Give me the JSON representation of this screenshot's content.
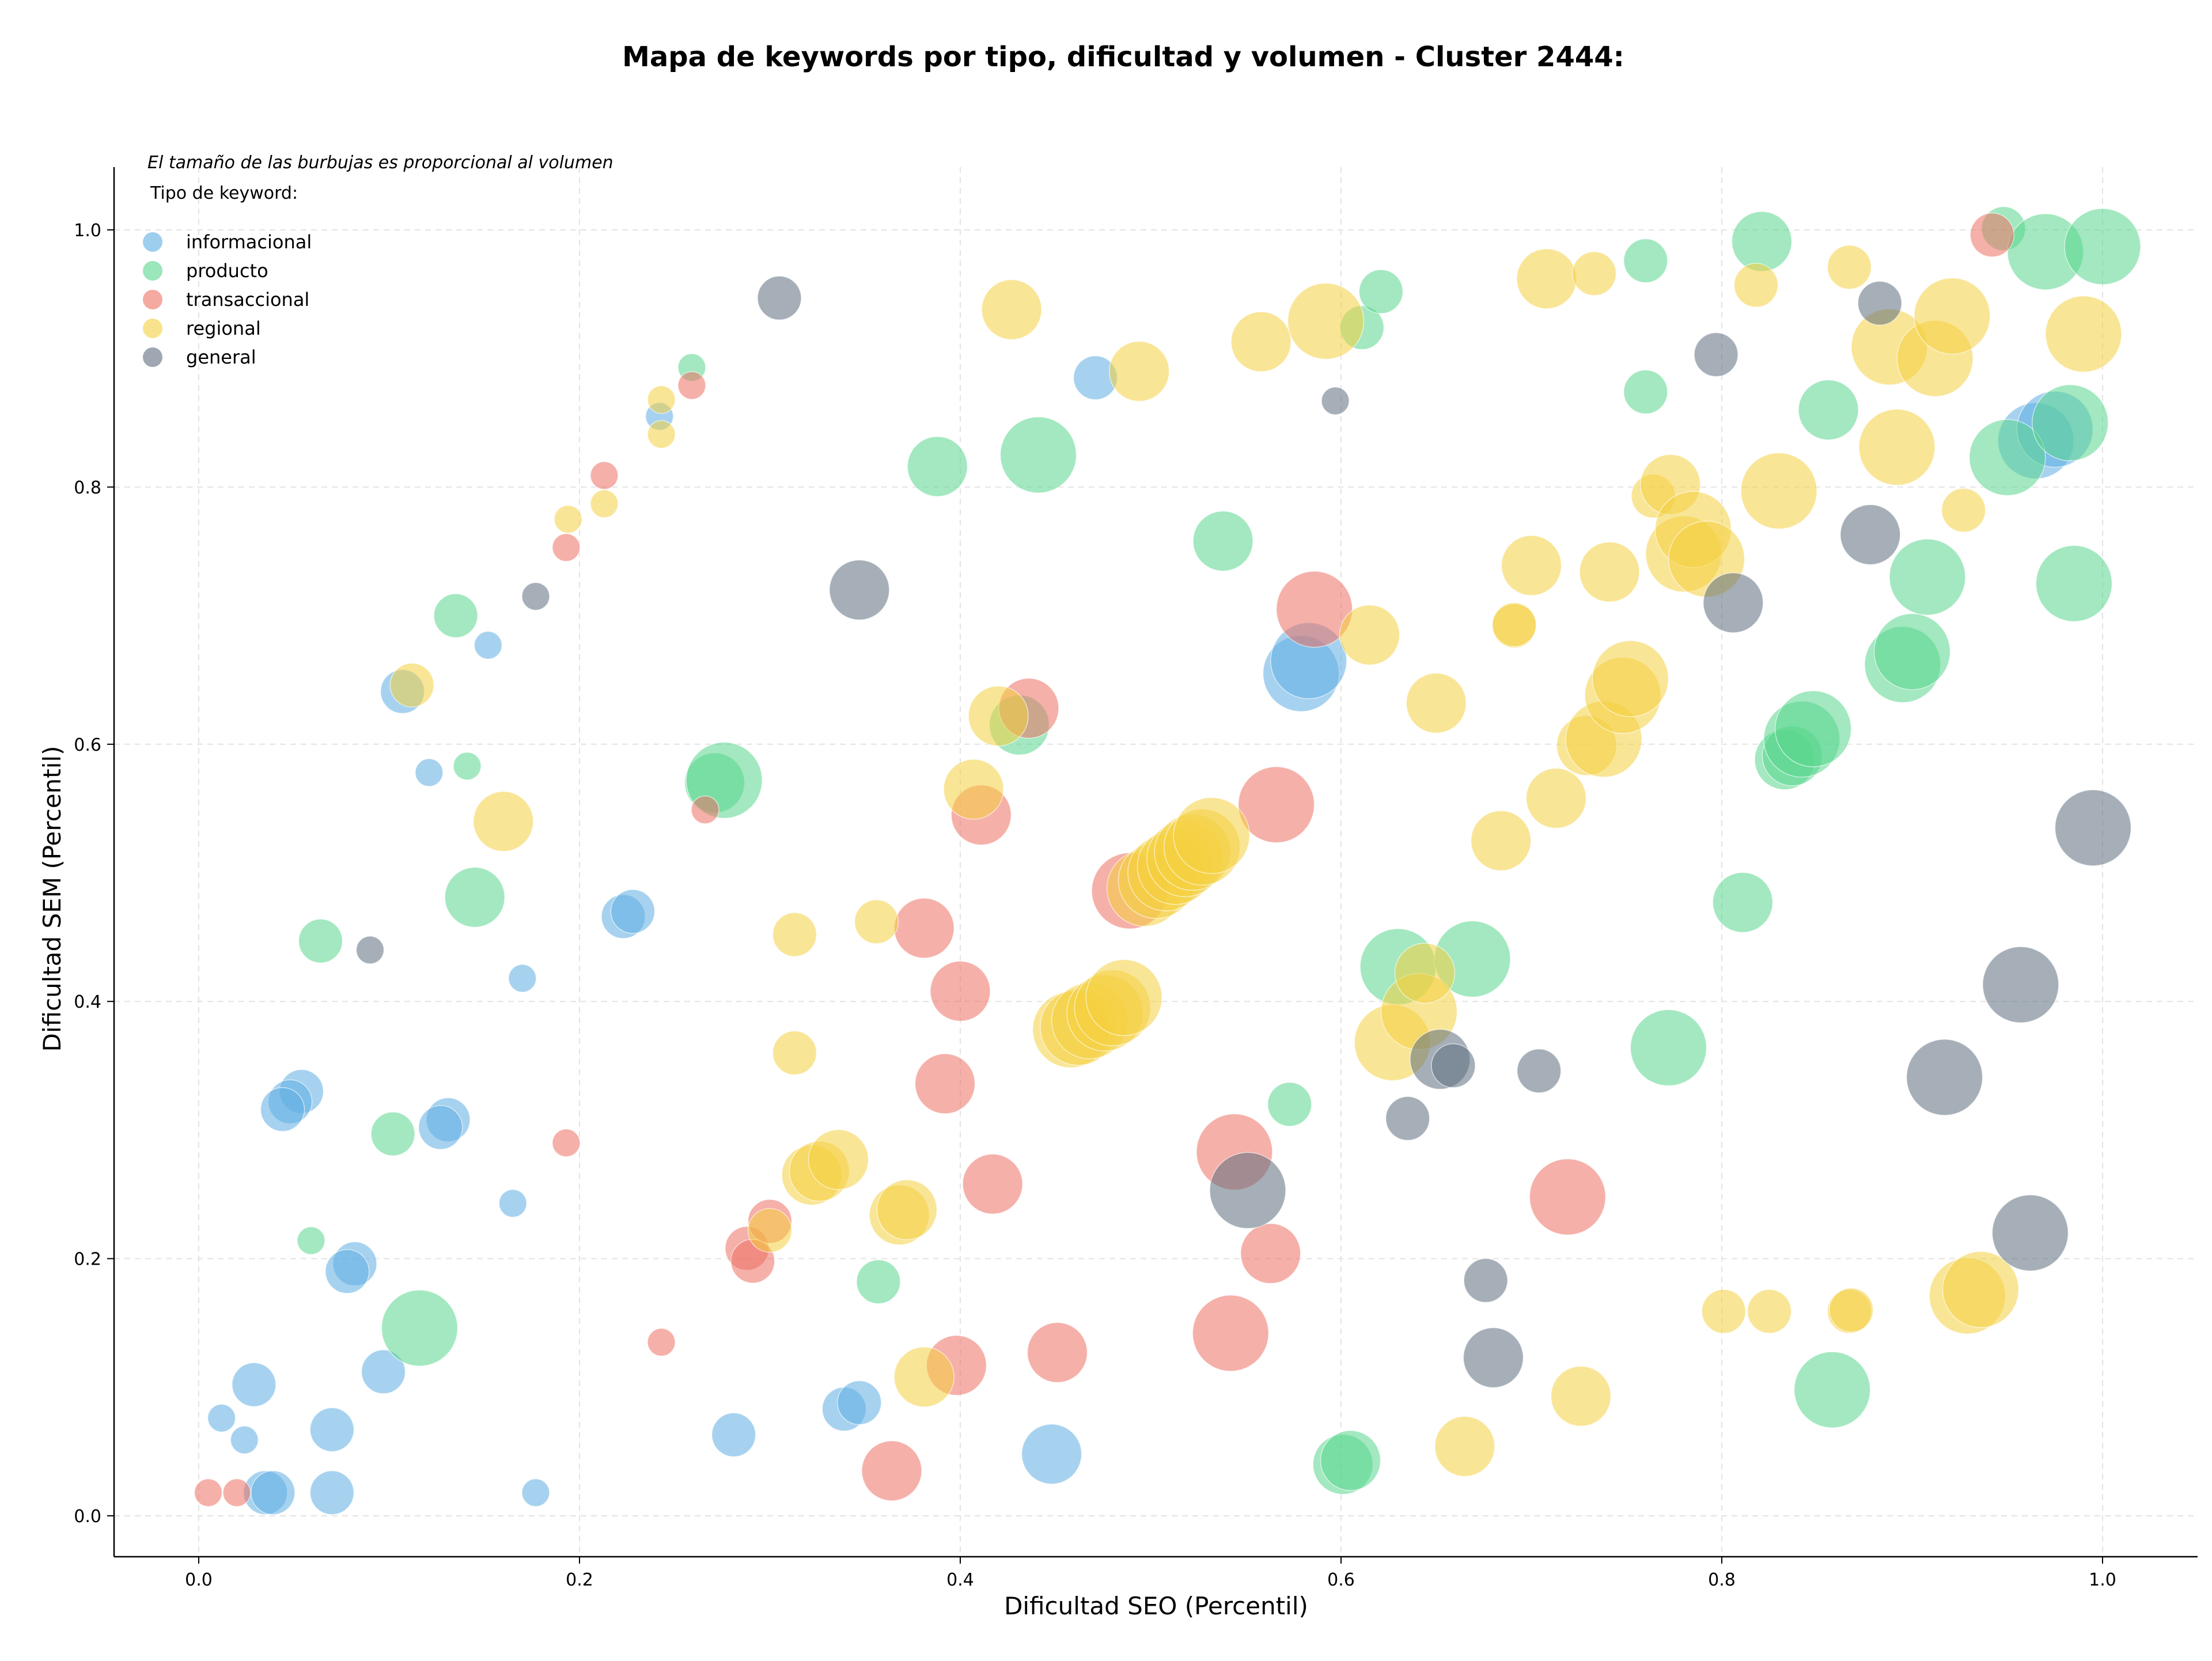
{
  "chart_data": {
    "type": "scatter",
    "title": "Mapa de keywords por tipo, dificultad y volumen - Cluster 2444:",
    "xlabel": "Dificultad SEO (Percentil)",
    "ylabel": "Dificultad SEM (Percentil)",
    "xlim": [
      -0.045,
      1.048
    ],
    "ylim": [
      -0.03,
      1.05
    ],
    "x_ticks": [
      0.0,
      0.2,
      0.4,
      0.6,
      0.8,
      1.0
    ],
    "y_ticks": [
      0.0,
      0.2,
      0.4,
      0.6,
      0.8,
      1.0
    ],
    "x_tick_labels": [
      "0.0",
      "0.2",
      "0.4",
      "0.6",
      "0.8",
      "1.0"
    ],
    "y_tick_labels": [
      "0.0",
      "0.2",
      "0.4",
      "0.6",
      "0.8",
      "1.0"
    ],
    "grid": true,
    "note": "El tamaño de las burbujas es proporcional al volumen",
    "legend_title": "Tipo de keyword:",
    "legend_position": "top-left",
    "series": [
      {
        "name": "informacional",
        "color": "#5dade2",
        "points": [
          [
            0.107,
            0.641,
            2
          ],
          [
            0.121,
            0.578,
            1
          ],
          [
            0.152,
            0.677,
            1
          ],
          [
            0.17,
            0.418,
            1
          ],
          [
            0.165,
            0.243,
            1
          ],
          [
            0.177,
            0.018,
            1
          ],
          [
            0.242,
            0.855,
            1
          ],
          [
            0.223,
            0.466,
            2
          ],
          [
            0.228,
            0.47,
            2
          ],
          [
            0.054,
            0.33,
            2
          ],
          [
            0.048,
            0.322,
            2
          ],
          [
            0.044,
            0.316,
            2
          ],
          [
            0.131,
            0.308,
            2
          ],
          [
            0.127,
            0.302,
            2
          ],
          [
            0.082,
            0.196,
            2
          ],
          [
            0.078,
            0.19,
            2
          ],
          [
            0.097,
            0.112,
            2
          ],
          [
            0.029,
            0.102,
            2
          ],
          [
            0.012,
            0.076,
            1
          ],
          [
            0.024,
            0.059,
            1
          ],
          [
            0.035,
            0.018,
            2
          ],
          [
            0.039,
            0.018,
            2
          ],
          [
            0.07,
            0.067,
            2
          ],
          [
            0.07,
            0.018,
            2
          ],
          [
            0.281,
            0.063,
            2
          ],
          [
            0.339,
            0.083,
            2
          ],
          [
            0.347,
            0.088,
            2
          ],
          [
            0.448,
            0.048,
            3
          ],
          [
            0.471,
            0.885,
            2
          ],
          [
            0.579,
            0.655,
            4
          ],
          [
            0.583,
            0.665,
            4
          ],
          [
            0.965,
            0.836,
            4
          ],
          [
            0.975,
            0.845,
            4
          ]
        ]
      },
      {
        "name": "producto",
        "color": "#58d68d",
        "points": [
          [
            0.135,
            0.7,
            2
          ],
          [
            0.141,
            0.583,
            1
          ],
          [
            0.145,
            0.481,
            3
          ],
          [
            0.064,
            0.447,
            2
          ],
          [
            0.102,
            0.297,
            2
          ],
          [
            0.059,
            0.214,
            1
          ],
          [
            0.116,
            0.146,
            4
          ],
          [
            0.259,
            0.893,
            1
          ],
          [
            0.271,
            0.57,
            3
          ],
          [
            0.276,
            0.572,
            4
          ],
          [
            0.388,
            0.816,
            3
          ],
          [
            0.441,
            0.825,
            4
          ],
          [
            0.431,
            0.615,
            3
          ],
          [
            0.357,
            0.182,
            2
          ],
          [
            0.538,
            0.758,
            3
          ],
          [
            0.573,
            0.32,
            2
          ],
          [
            0.601,
            0.04,
            3
          ],
          [
            0.605,
            0.043,
            3
          ],
          [
            0.611,
            0.924,
            2
          ],
          [
            0.621,
            0.952,
            2
          ],
          [
            0.63,
            0.427,
            4
          ],
          [
            0.669,
            0.433,
            4
          ],
          [
            0.76,
            0.976,
            2
          ],
          [
            0.76,
            0.874,
            2
          ],
          [
            0.772,
            0.364,
            4
          ],
          [
            0.811,
            0.477,
            3
          ],
          [
            0.821,
            0.991,
            3
          ],
          [
            0.833,
            0.588,
            3
          ],
          [
            0.837,
            0.591,
            3
          ],
          [
            0.842,
            0.604,
            4
          ],
          [
            0.848,
            0.612,
            4
          ],
          [
            0.856,
            0.86,
            3
          ],
          [
            0.858,
            0.098,
            4
          ],
          [
            0.895,
            0.662,
            4
          ],
          [
            0.9,
            0.672,
            4
          ],
          [
            0.908,
            0.73,
            4
          ],
          [
            0.95,
            0.823,
            4
          ],
          [
            0.948,
            1.001,
            2
          ],
          [
            0.97,
            0.983,
            4
          ],
          [
            0.983,
            0.85,
            4
          ],
          [
            0.985,
            0.725,
            4
          ],
          [
            1.0,
            0.987,
            4
          ]
        ]
      },
      {
        "name": "transaccional",
        "color": "#ec7063",
        "points": [
          [
            0.193,
            0.753,
            1
          ],
          [
            0.213,
            0.809,
            1
          ],
          [
            0.259,
            0.879,
            1
          ],
          [
            0.266,
            0.549,
            1
          ],
          [
            0.193,
            0.29,
            1
          ],
          [
            0.243,
            0.135,
            1
          ],
          [
            0.005,
            0.018,
            1
          ],
          [
            0.02,
            0.018,
            1
          ],
          [
            0.288,
            0.208,
            2
          ],
          [
            0.291,
            0.198,
            2
          ],
          [
            0.3,
            0.229,
            2
          ],
          [
            0.364,
            0.035,
            3
          ],
          [
            0.381,
            0.457,
            3
          ],
          [
            0.392,
            0.336,
            3
          ],
          [
            0.4,
            0.408,
            3
          ],
          [
            0.411,
            0.545,
            3
          ],
          [
            0.398,
            0.117,
            3
          ],
          [
            0.417,
            0.258,
            3
          ],
          [
            0.436,
            0.628,
            3
          ],
          [
            0.451,
            0.127,
            3
          ],
          [
            0.489,
            0.486,
            4
          ],
          [
            0.544,
            0.283,
            4
          ],
          [
            0.542,
            0.142,
            4
          ],
          [
            0.563,
            0.204,
            3
          ],
          [
            0.566,
            0.553,
            4
          ],
          [
            0.586,
            0.705,
            4
          ],
          [
            0.719,
            0.248,
            4
          ],
          [
            0.942,
            0.996,
            2
          ]
        ]
      },
      {
        "name": "regional",
        "color": "#f4d03f",
        "points": [
          [
            0.112,
            0.646,
            2
          ],
          [
            0.16,
            0.54,
            3
          ],
          [
            0.194,
            0.775,
            1
          ],
          [
            0.213,
            0.787,
            1
          ],
          [
            0.243,
            0.868,
            1
          ],
          [
            0.243,
            0.841,
            1
          ],
          [
            0.313,
            0.452,
            2
          ],
          [
            0.313,
            0.36,
            2
          ],
          [
            0.3,
            0.222,
            2
          ],
          [
            0.322,
            0.265,
            3
          ],
          [
            0.326,
            0.268,
            3
          ],
          [
            0.336,
            0.277,
            3
          ],
          [
            0.356,
            0.462,
            2
          ],
          [
            0.368,
            0.234,
            3
          ],
          [
            0.372,
            0.238,
            3
          ],
          [
            0.381,
            0.108,
            3
          ],
          [
            0.407,
            0.565,
            3
          ],
          [
            0.42,
            0.622,
            3
          ],
          [
            0.427,
            0.938,
            3
          ],
          [
            0.458,
            0.378,
            4
          ],
          [
            0.462,
            0.38,
            4
          ],
          [
            0.468,
            0.385,
            4
          ],
          [
            0.476,
            0.391,
            4
          ],
          [
            0.48,
            0.395,
            4
          ],
          [
            0.486,
            0.403,
            4
          ],
          [
            0.494,
            0.89,
            3
          ],
          [
            0.497,
            0.488,
            4
          ],
          [
            0.503,
            0.494,
            4
          ],
          [
            0.508,
            0.5,
            4
          ],
          [
            0.513,
            0.505,
            4
          ],
          [
            0.518,
            0.511,
            4
          ],
          [
            0.522,
            0.516,
            4
          ],
          [
            0.527,
            0.52,
            4
          ],
          [
            0.532,
            0.529,
            4
          ],
          [
            0.558,
            0.913,
            3
          ],
          [
            0.592,
            0.929,
            4
          ],
          [
            0.615,
            0.685,
            3
          ],
          [
            0.627,
            0.368,
            4
          ],
          [
            0.641,
            0.392,
            4
          ],
          [
            0.644,
            0.422,
            3
          ],
          [
            0.65,
            0.632,
            3
          ],
          [
            0.665,
            0.054,
            3
          ],
          [
            0.684,
            0.525,
            3
          ],
          [
            0.691,
            0.692,
            2
          ],
          [
            0.691,
            0.693,
            2
          ],
          [
            0.7,
            0.739,
            3
          ],
          [
            0.708,
            0.962,
            3
          ],
          [
            0.713,
            0.558,
            3
          ],
          [
            0.726,
            0.093,
            3
          ],
          [
            0.729,
            0.599,
            3
          ],
          [
            0.733,
            0.966,
            2
          ],
          [
            0.738,
            0.604,
            4
          ],
          [
            0.741,
            0.734,
            3
          ],
          [
            0.748,
            0.638,
            4
          ],
          [
            0.752,
            0.651,
            4
          ],
          [
            0.764,
            0.793,
            2
          ],
          [
            0.773,
            0.802,
            3
          ],
          [
            0.78,
            0.748,
            4
          ],
          [
            0.785,
            0.767,
            4
          ],
          [
            0.792,
            0.744,
            4
          ],
          [
            0.801,
            0.159,
            2
          ],
          [
            0.818,
            0.957,
            2
          ],
          [
            0.825,
            0.159,
            2
          ],
          [
            0.83,
            0.797,
            4
          ],
          [
            0.867,
            0.971,
            2
          ],
          [
            0.867,
            0.159,
            2
          ],
          [
            0.868,
            0.16,
            2
          ],
          [
            0.888,
            0.909,
            4
          ],
          [
            0.892,
            0.831,
            4
          ],
          [
            0.912,
            0.9,
            4
          ],
          [
            0.921,
            0.933,
            4
          ],
          [
            0.927,
            0.782,
            2
          ],
          [
            0.929,
            0.171,
            4
          ],
          [
            0.936,
            0.176,
            4
          ],
          [
            0.99,
            0.919,
            4
          ]
        ]
      },
      {
        "name": "general",
        "color": "#5d6d7e",
        "points": [
          [
            0.09,
            0.44,
            1
          ],
          [
            0.177,
            0.715,
            1
          ],
          [
            0.305,
            0.947,
            2
          ],
          [
            0.347,
            0.72,
            3
          ],
          [
            0.551,
            0.253,
            4
          ],
          [
            0.597,
            0.867,
            1
          ],
          [
            0.635,
            0.309,
            2
          ],
          [
            0.652,
            0.355,
            3
          ],
          [
            0.659,
            0.35,
            2
          ],
          [
            0.676,
            0.183,
            2
          ],
          [
            0.68,
            0.123,
            3
          ],
          [
            0.704,
            0.346,
            2
          ],
          [
            0.797,
            0.903,
            2
          ],
          [
            0.806,
            0.71,
            3
          ],
          [
            0.878,
            0.763,
            3
          ],
          [
            0.883,
            0.943,
            2
          ],
          [
            0.917,
            0.341,
            4
          ],
          [
            0.957,
            0.413,
            4
          ],
          [
            0.962,
            0.22,
            4
          ],
          [
            0.995,
            0.535,
            4
          ]
        ]
      }
    ]
  }
}
